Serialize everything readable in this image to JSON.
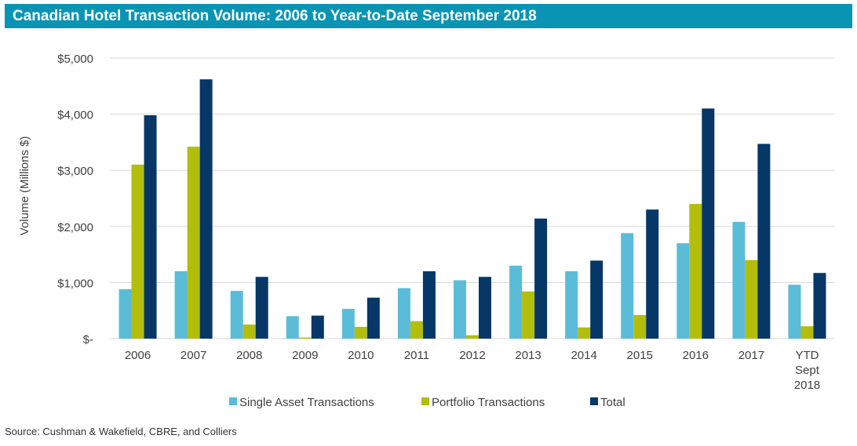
{
  "source": "Source: Cushman & Wakefield, CBRE, and Colliers",
  "colors": {
    "title_bg": "#0a94b4",
    "single": "#5bbcd8",
    "portfolio": "#b3bd0c",
    "total": "#063766",
    "grid": "#d9d9d9",
    "axis_text": "#404040"
  },
  "chart_data": {
    "type": "bar",
    "title": "Canadian Hotel Transaction Volume: 2006 to Year-to-Date September 2018",
    "xlabel": "",
    "ylabel": "Volume (Millions $)",
    "ylim": [
      0,
      5000
    ],
    "yticks": [
      0,
      1000,
      2000,
      3000,
      4000,
      5000
    ],
    "ytick_labels": [
      "$-",
      "$1,000",
      "$2,000",
      "$3,000",
      "$4,000",
      "$5,000"
    ],
    "grid": true,
    "legend_position": "bottom",
    "categories": [
      [
        "2006"
      ],
      [
        "2007"
      ],
      [
        "2008"
      ],
      [
        "2009"
      ],
      [
        "2010"
      ],
      [
        "2011"
      ],
      [
        "2012"
      ],
      [
        "2013"
      ],
      [
        "2014"
      ],
      [
        "2015"
      ],
      [
        "2016"
      ],
      [
        "2017"
      ],
      [
        "YTD",
        "Sept",
        "2018"
      ]
    ],
    "series": [
      {
        "name": "Single Asset Transactions",
        "color_key": "single",
        "values": [
          880,
          1200,
          850,
          400,
          530,
          900,
          1040,
          1300,
          1200,
          1880,
          1700,
          2080,
          960
        ]
      },
      {
        "name": "Portfolio Transactions",
        "color_key": "portfolio",
        "values": [
          3100,
          3420,
          250,
          20,
          210,
          310,
          60,
          840,
          200,
          420,
          2400,
          1400,
          220
        ]
      },
      {
        "name": "Total",
        "color_key": "total",
        "values": [
          3980,
          4620,
          1100,
          410,
          730,
          1200,
          1100,
          2140,
          1390,
          2300,
          4100,
          3470,
          1170
        ]
      }
    ]
  }
}
